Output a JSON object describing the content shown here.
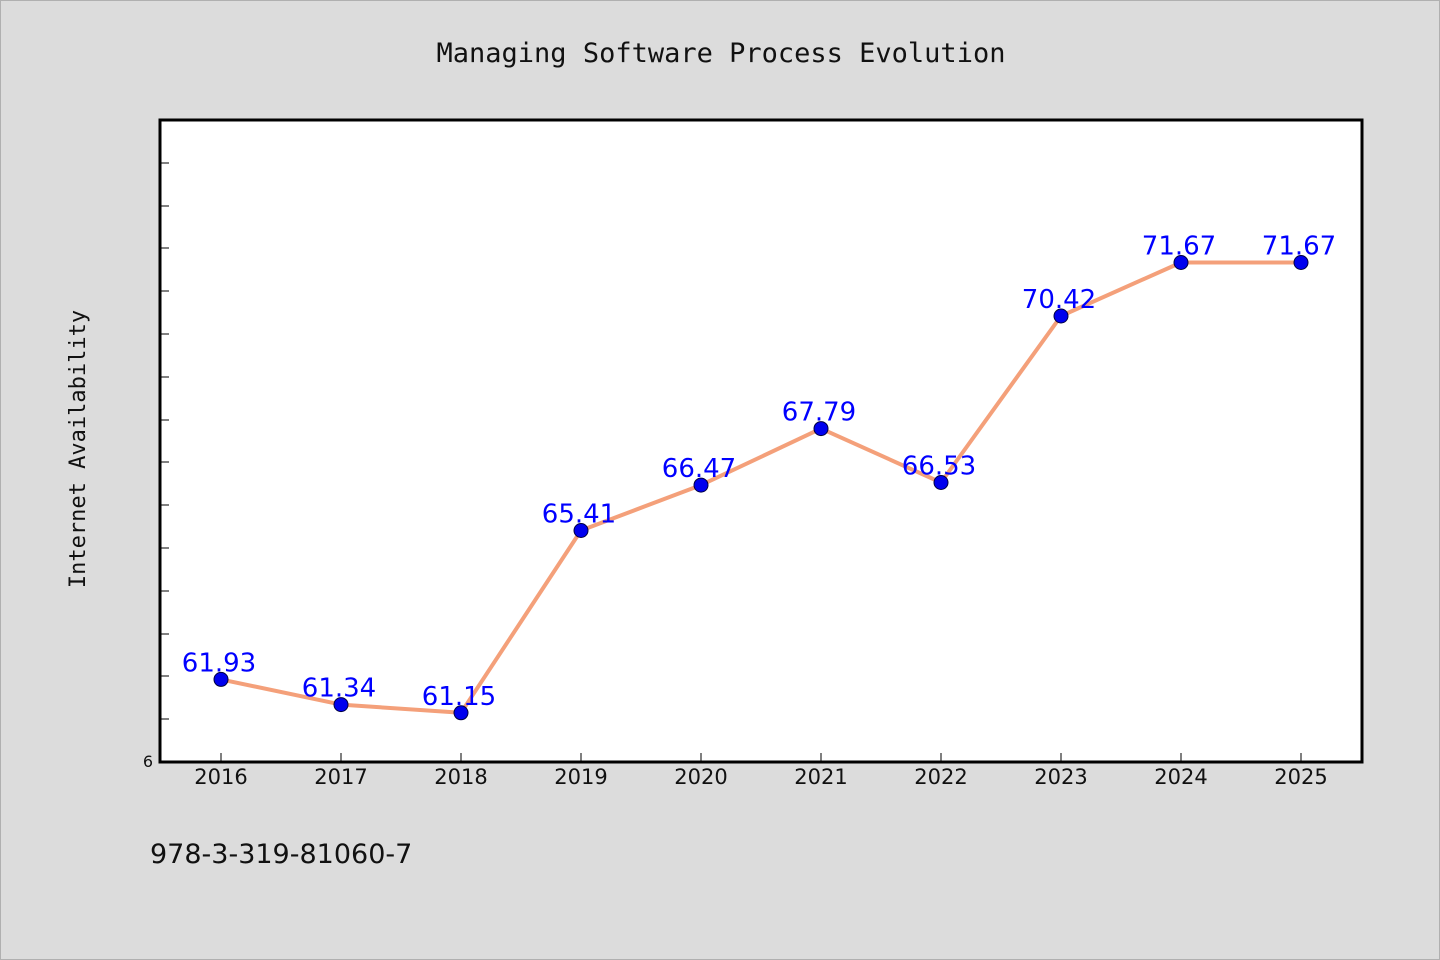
{
  "chart_data": {
    "type": "line",
    "title": "Managing Software Process Evolution",
    "xlabel": "",
    "ylabel": "Internet Availability",
    "categories": [
      "2016",
      "2017",
      "2018",
      "2019",
      "2020",
      "2021",
      "2022",
      "2023",
      "2024",
      "2025"
    ],
    "series": [
      {
        "values": [
          61.93,
          61.34,
          61.15,
          65.41,
          66.47,
          67.79,
          66.53,
          70.42,
          71.67,
          71.67
        ],
        "data_labels": [
          "61.93",
          "61.34",
          "61.15",
          "65.41",
          "66.47",
          "67.79",
          "66.53",
          "70.42",
          "71.67",
          "71.67"
        ]
      }
    ],
    "ylim": [
      60,
      75
    ],
    "y_tick_label": "6",
    "grid": false,
    "legend": "none",
    "colors": {
      "line": "#f4a07a",
      "marker": "#0000ee",
      "data_label": "#0000ff",
      "plot_background": "#ffffff",
      "figure_background": "#dcdcdc"
    }
  },
  "footer": {
    "isbn": "978-3-319-81060-7"
  }
}
